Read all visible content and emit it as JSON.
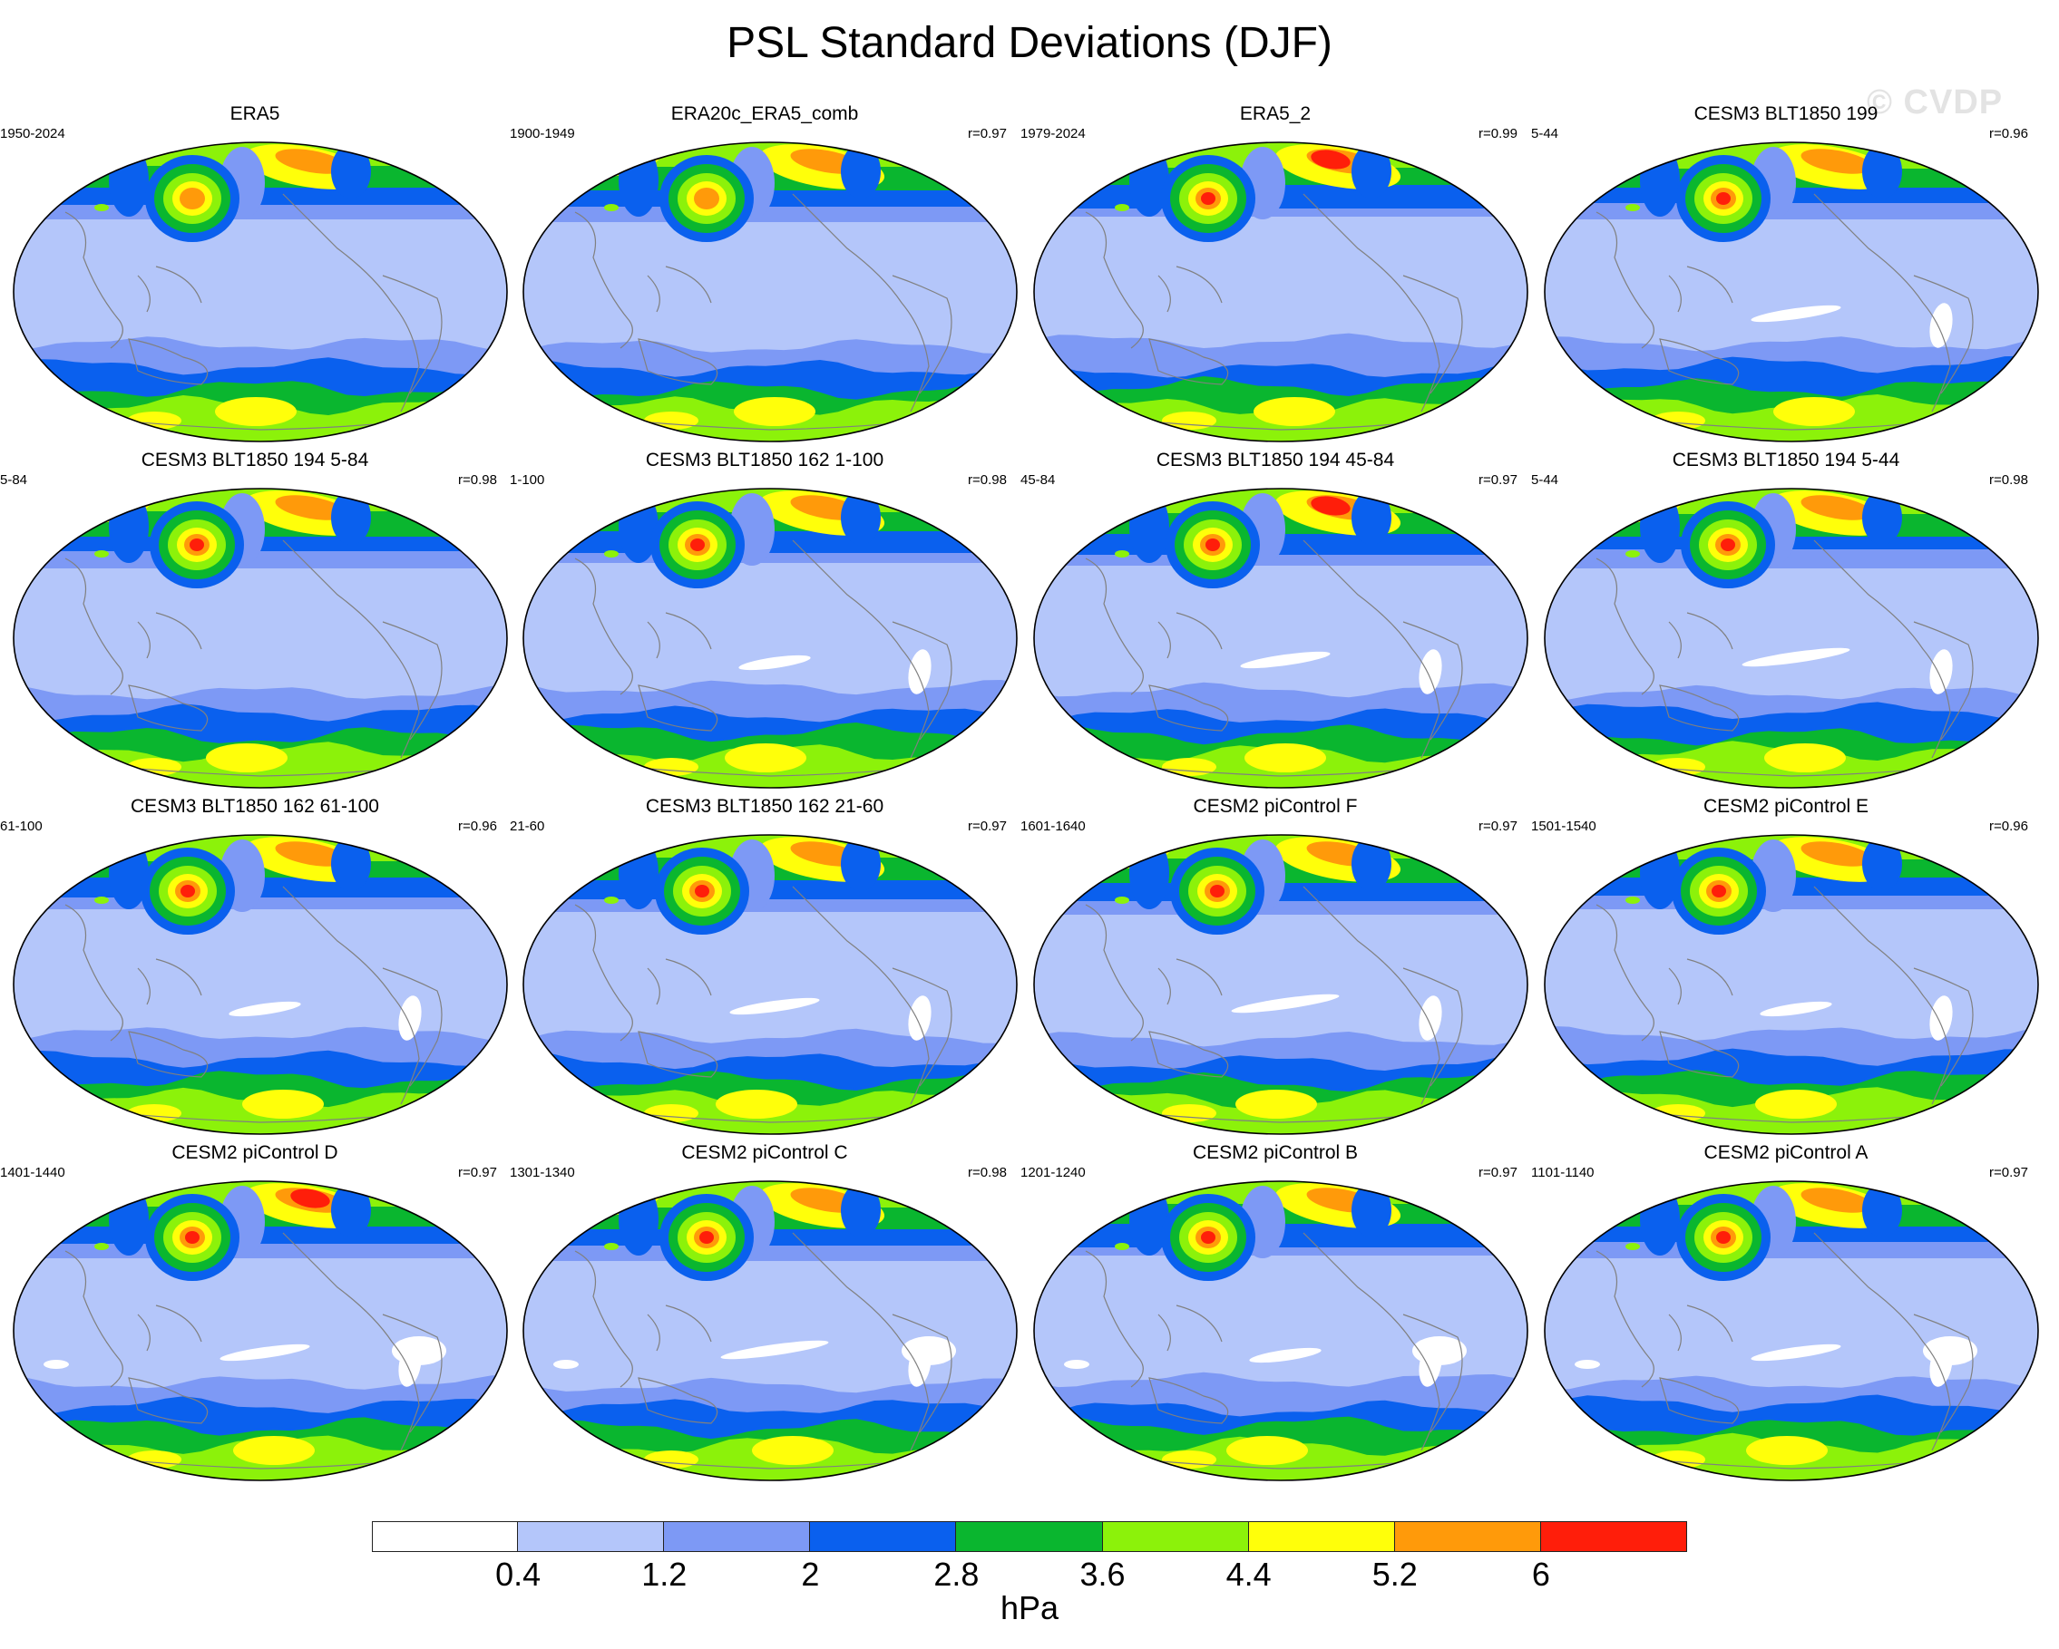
{
  "title": "PSL Standard Deviations (DJF)",
  "watermark": "© CVDP",
  "colorbar": {
    "colors": [
      "#ffffff",
      "#b4c6fa",
      "#7d99f5",
      "#0a60ee",
      "#0ab62f",
      "#8cf20a",
      "#ffff0a",
      "#ff9a0a",
      "#ff1e0a"
    ],
    "ticks": [
      "0.4",
      "1.2",
      "2",
      "2.8",
      "3.6",
      "4.4",
      "5.2",
      "6"
    ],
    "unit": "hPa"
  },
  "panels": [
    {
      "title": "ERA5",
      "years": "1950-2024",
      "corr": "",
      "variant": 0
    },
    {
      "title": "ERA20c_ERA5_comb",
      "years": "1900-1949",
      "corr": "r=0.97",
      "variant": 1
    },
    {
      "title": "ERA5_2",
      "years": "1979-2024",
      "corr": "r=0.99",
      "variant": 2
    },
    {
      "title": "CESM3 BLT1850 199",
      "years": "5-44",
      "corr": "r=0.96",
      "variant": 3
    },
    {
      "title": "CESM3 BLT1850 194 5-84",
      "years": "5-84",
      "corr": "r=0.98",
      "variant": 4
    },
    {
      "title": "CESM3 BLT1850 162 1-100",
      "years": "1-100",
      "corr": "r=0.98",
      "variant": 5
    },
    {
      "title": "CESM3 BLT1850 194 45-84",
      "years": "45-84",
      "corr": "r=0.97",
      "variant": 6
    },
    {
      "title": "CESM3 BLT1850 194 5-44",
      "years": "5-44",
      "corr": "r=0.98",
      "variant": 7
    },
    {
      "title": "CESM3 BLT1850 162 61-100",
      "years": "61-100",
      "corr": "r=0.96",
      "variant": 8
    },
    {
      "title": "CESM3 BLT1850 162 21-60",
      "years": "21-60",
      "corr": "r=0.97",
      "variant": 9
    },
    {
      "title": "CESM2 piControl F",
      "years": "1601-1640",
      "corr": "r=0.97",
      "variant": 10
    },
    {
      "title": "CESM2 piControl E",
      "years": "1501-1540",
      "corr": "r=0.96",
      "variant": 11
    },
    {
      "title": "CESM2 piControl D",
      "years": "1401-1440",
      "corr": "r=0.97",
      "variant": 12
    },
    {
      "title": "CESM2 piControl C",
      "years": "1301-1340",
      "corr": "r=0.98",
      "variant": 13
    },
    {
      "title": "CESM2 piControl B",
      "years": "1201-1240",
      "corr": "r=0.97",
      "variant": 14
    },
    {
      "title": "CESM2 piControl A",
      "years": "1101-1140",
      "corr": "r=0.97",
      "variant": 15
    }
  ]
}
